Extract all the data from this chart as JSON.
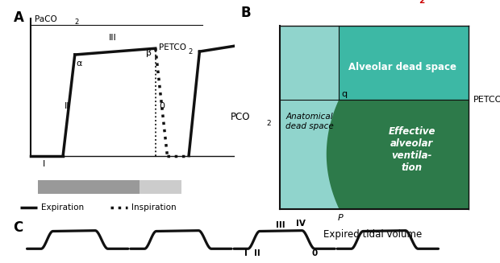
{
  "panel_A_label": "A",
  "panel_B_label": "B",
  "panel_C_label": "C",
  "paco2_text": "PaCO",
  "paco2_sub": "2",
  "petco2_text": "PETCO",
  "petco2_sub": "2",
  "pco2_text": "PCO",
  "pco2_sub": "2",
  "expired_tidal_volume_label": "Expired tidal volume",
  "alveolar_dead_space_label": "Alveolar dead space",
  "anatomical_dead_space_label": "Anatomical\ndead space",
  "effective_alveolar_label": "Effective\nalveolar\nventila-\ntion",
  "expiration_label": "Expiration",
  "inspiration_label": "Inspiration",
  "roman_I": "I",
  "roman_II": "II",
  "roman_III": "III",
  "roman_IV": "IV",
  "alpha_sym": "α",
  "beta_sym": "β",
  "zero": "0",
  "p_label": "P",
  "q_label": "q",
  "paco2_color": "#cc0000",
  "alveolar_ds_color": "#3db8a5",
  "effective_alv_color": "#2d7a4a",
  "anatomical_ds_color": "#90d4cc",
  "gray_dark": "#999999",
  "gray_light": "#cccccc",
  "line_color": "#111111"
}
